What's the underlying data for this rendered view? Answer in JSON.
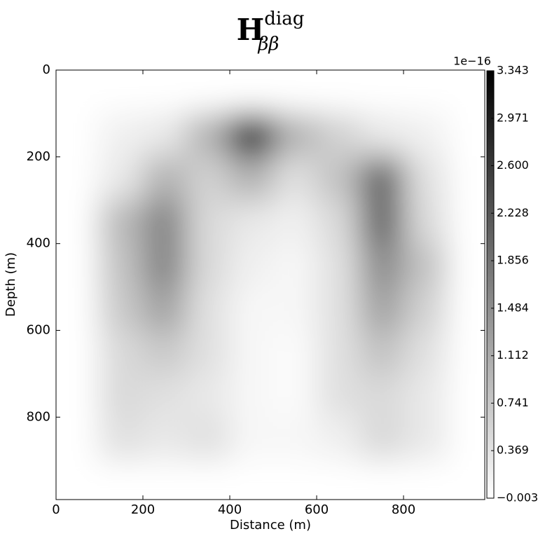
{
  "chart_data": {
    "type": "heatmap",
    "title": "H",
    "title_superscript": "diag",
    "title_subscript": "ββ",
    "x_label": "Distance (m)",
    "y_label": "Depth (m)",
    "x": [
      50,
      150,
      250,
      350,
      450,
      550,
      650,
      750,
      850,
      950
    ],
    "y": [
      50,
      150,
      250,
      350,
      450,
      550,
      650,
      750,
      850,
      950
    ],
    "z": [
      [
        0,
        0,
        0,
        0,
        0,
        0,
        0,
        0,
        0,
        0
      ],
      [
        0,
        0.2,
        0.3,
        1.0,
        2.8,
        1.0,
        0.6,
        0.3,
        0.2,
        0
      ],
      [
        0,
        0.3,
        1.0,
        0.6,
        1.0,
        0.4,
        0.8,
        2.0,
        0.4,
        0
      ],
      [
        0,
        0.9,
        1.6,
        0.5,
        0.3,
        0.2,
        0.5,
        2.0,
        0.5,
        0
      ],
      [
        0,
        0.8,
        1.6,
        0.5,
        0.2,
        0.1,
        0.4,
        1.5,
        0.8,
        0
      ],
      [
        0,
        0.7,
        1.2,
        0.4,
        0.1,
        0.1,
        0.4,
        1.2,
        0.6,
        0
      ],
      [
        0,
        0.5,
        0.7,
        0.4,
        0.1,
        0.05,
        0.4,
        0.8,
        0.4,
        0
      ],
      [
        0,
        0.5,
        0.4,
        0.3,
        0.1,
        0.05,
        0.4,
        0.5,
        0.3,
        0
      ],
      [
        0,
        0.4,
        0.3,
        0.4,
        0.1,
        0.1,
        0.2,
        0.5,
        0.3,
        0
      ],
      [
        0,
        0,
        0,
        0,
        0,
        0,
        0,
        0,
        0,
        0
      ]
    ],
    "xlim": [
      0,
      987
    ],
    "ylim": [
      990,
      0
    ],
    "xticks": [
      0,
      200,
      400,
      600,
      800
    ],
    "yticks": [
      0,
      200,
      400,
      600,
      800
    ],
    "colormap": "gray_r",
    "clim": [
      -0.003,
      3.343
    ],
    "colorbar_offset_label": "1e−16",
    "cticks": [
      3.343,
      2.971,
      {
        "value": 2.6,
        "label": "2.600"
      },
      2.228,
      1.856,
      1.484,
      1.112,
      0.741,
      0.369,
      {
        "value": -0.003,
        "label": "−0.003"
      }
    ]
  }
}
